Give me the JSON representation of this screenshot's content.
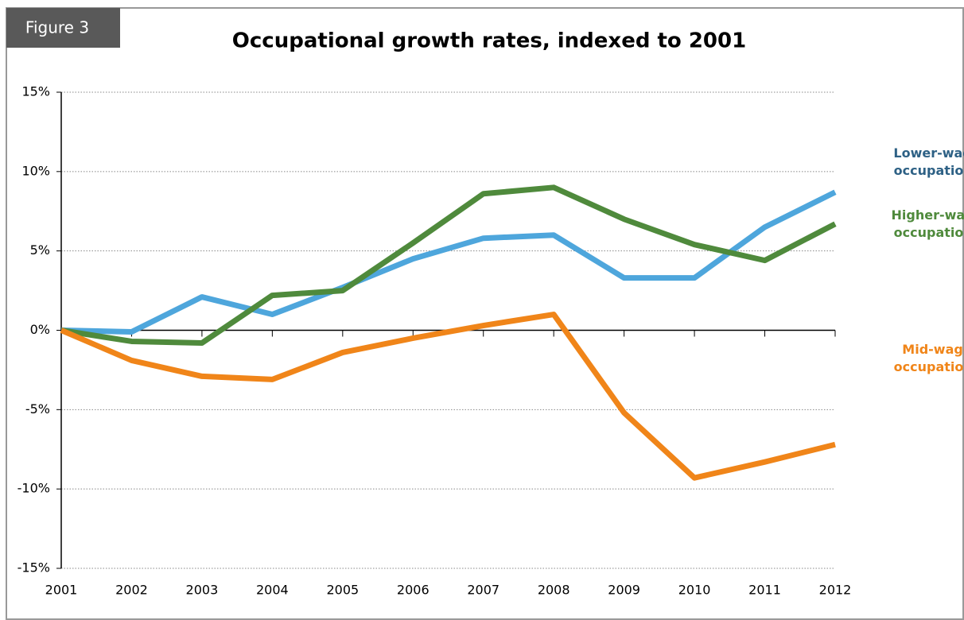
{
  "chart_data": {
    "type": "line",
    "figure_label": "Figure 3",
    "title": "Occupational growth rates, indexed to 2001",
    "categories": [
      "2001",
      "2002",
      "2003",
      "2004",
      "2005",
      "2006",
      "2007",
      "2008",
      "2009",
      "2010",
      "2011",
      "2012"
    ],
    "series": [
      {
        "name": "Lower-wage occupations",
        "color": "#4ea6dc",
        "label_color": "#2e6185",
        "values": [
          0,
          -0.1,
          2.1,
          1.0,
          2.7,
          4.5,
          5.8,
          6.0,
          3.3,
          3.3,
          6.5,
          8.7
        ]
      },
      {
        "name": "Higher-wage occupations",
        "color": "#4f8a3c",
        "label_color": "#4f8a3c",
        "values": [
          0,
          -0.7,
          -0.8,
          2.2,
          2.5,
          5.5,
          8.6,
          9.0,
          7.0,
          5.4,
          4.4,
          6.7
        ]
      },
      {
        "name": "Mid-wage occupations",
        "color": "#f08519",
        "label_color": "#f08519",
        "values": [
          0,
          -1.9,
          -2.9,
          -3.1,
          -1.4,
          -0.5,
          0.3,
          1.0,
          -5.2,
          -9.3,
          -8.3,
          -7.2
        ]
      }
    ],
    "ylim": [
      -15,
      15
    ],
    "yticks": [
      {
        "value": -15,
        "label": "-15%"
      },
      {
        "value": -10,
        "label": "-10%"
      },
      {
        "value": -5,
        "label": "-5%"
      },
      {
        "value": 0,
        "label": "0%"
      },
      {
        "value": 5,
        "label": "5%"
      },
      {
        "value": 10,
        "label": "10%"
      },
      {
        "value": 15,
        "label": "15%"
      }
    ],
    "grid": true
  }
}
